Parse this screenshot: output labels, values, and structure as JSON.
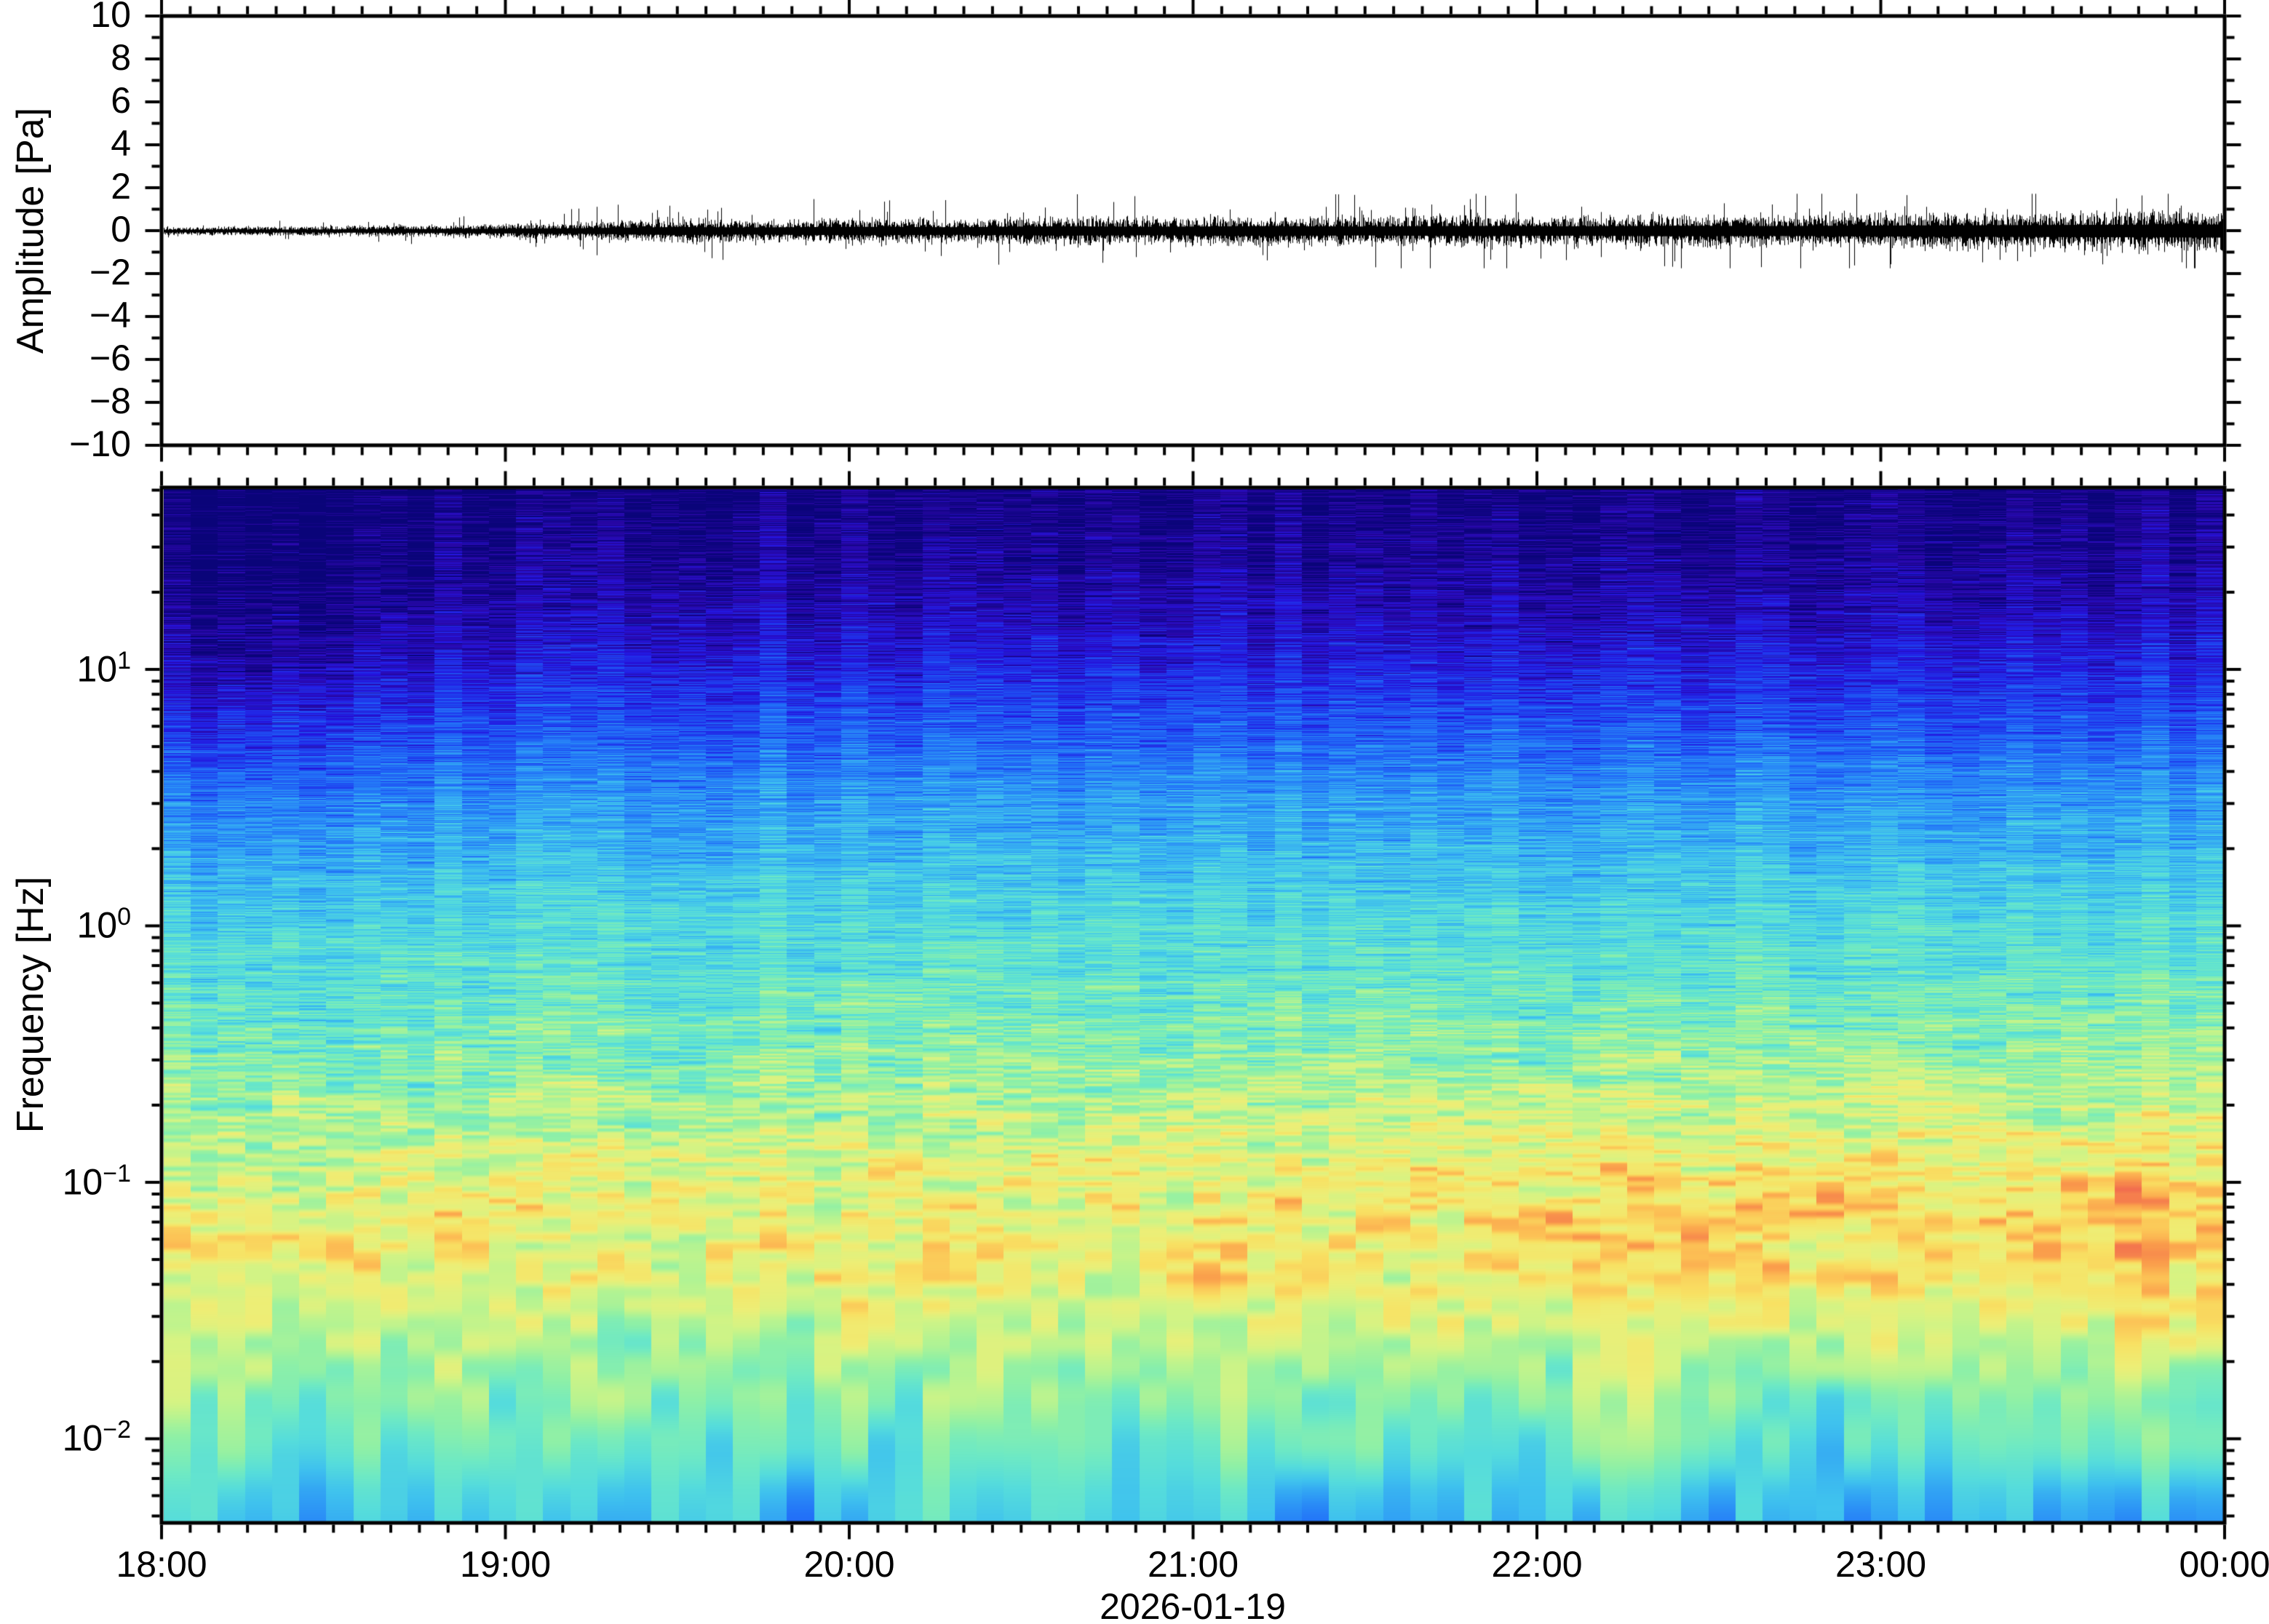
{
  "figure": {
    "date_label": "2026-01-19",
    "background": "#ffffff",
    "frame_color": "#000000"
  },
  "chart_data": [
    {
      "id": "waveform",
      "type": "line",
      "title": "",
      "xlabel": "",
      "ylabel": "Amplitude [Pa]",
      "ylim": [
        -10,
        10
      ],
      "ytick_interval": 2,
      "ytick_minor_interval": 1,
      "ytick_labels": [
        "10",
        "8",
        "6",
        "4",
        "2",
        "0",
        "−2",
        "−4",
        "−6",
        "−8",
        "−10"
      ],
      "ytick_values": [
        10,
        8,
        6,
        4,
        2,
        0,
        -2,
        -4,
        -6,
        -8,
        -10
      ],
      "x_start": "18:00",
      "x_end": "00:00",
      "x_span_hours": 6,
      "xtick_major_minutes": 60,
      "xtick_minor_minutes": 5,
      "line_color": "#000000",
      "grid": false,
      "description": "Broadband infrasound pressure time series; zero-mean noise whose amplitude grows from about ±0.1 Pa at 18:00 to about ±0.6 Pa at 00:00, with intermittent spikes reaching about ±1.6 Pa after 20:00.",
      "envelope_pa_vs_hours": [
        [
          0.0,
          0.12
        ],
        [
          0.5,
          0.15
        ],
        [
          0.9,
          0.2
        ],
        [
          1.2,
          0.26
        ],
        [
          1.5,
          0.38
        ],
        [
          1.7,
          0.33
        ],
        [
          2.0,
          0.4
        ],
        [
          2.3,
          0.36
        ],
        [
          2.6,
          0.44
        ],
        [
          2.9,
          0.4
        ],
        [
          3.2,
          0.46
        ],
        [
          3.5,
          0.42
        ],
        [
          3.8,
          0.48
        ],
        [
          4.1,
          0.44
        ],
        [
          4.4,
          0.5
        ],
        [
          4.7,
          0.47
        ],
        [
          5.0,
          0.52
        ],
        [
          5.3,
          0.55
        ],
        [
          5.6,
          0.58
        ],
        [
          6.0,
          0.62
        ]
      ],
      "spike_max_pa": 1.75,
      "seed": 20260119
    },
    {
      "id": "spectrogram",
      "type": "heatmap",
      "title": "",
      "xlabel": "2026-01-19",
      "ylabel": "Frequency [Hz]",
      "yscale": "log",
      "ylim_hz": [
        0.0047,
        51.2
      ],
      "ytick_decade_exponents": [
        "1",
        "0",
        "−1",
        "−2"
      ],
      "ytick_decade_values": [
        10,
        1,
        0.1,
        0.01
      ],
      "ytick_base": "10",
      "xticks": [
        "18:00",
        "19:00",
        "20:00",
        "21:00",
        "22:00",
        "23:00",
        "00:00"
      ],
      "xtick_minor_minutes": 5,
      "time_bins": 76,
      "freq_bin_hz": 0.0047,
      "grid": false,
      "legend": "none (no colorbar shown)",
      "colormap_stops": [
        [
          0.0,
          "#0A0479"
        ],
        [
          0.05,
          "#2A07A8"
        ],
        [
          0.1,
          "#2415E0"
        ],
        [
          0.16,
          "#1E46F0"
        ],
        [
          0.22,
          "#2272F8"
        ],
        [
          0.28,
          "#2F9DF5"
        ],
        [
          0.34,
          "#3FC2EE"
        ],
        [
          0.4,
          "#55DCDC"
        ],
        [
          0.46,
          "#6EE9C4"
        ],
        [
          0.52,
          "#8FF0A6"
        ],
        [
          0.58,
          "#B4F392"
        ],
        [
          0.64,
          "#D6F383"
        ],
        [
          0.7,
          "#EDEE76"
        ],
        [
          0.76,
          "#F8E163"
        ],
        [
          0.82,
          "#FCC155"
        ],
        [
          0.88,
          "#FA9C4B"
        ],
        [
          0.94,
          "#F26F4E"
        ],
        [
          1.0,
          "#E44F4C"
        ]
      ],
      "power_profile_log10hz_vs_level": [
        [
          1.71,
          0.015
        ],
        [
          1.45,
          0.03
        ],
        [
          1.2,
          0.07
        ],
        [
          1.0,
          0.12
        ],
        [
          0.8,
          0.18
        ],
        [
          0.5,
          0.28
        ],
        [
          0.2,
          0.35
        ],
        [
          0.0,
          0.4
        ],
        [
          -0.3,
          0.45
        ],
        [
          -0.6,
          0.52
        ],
        [
          -0.9,
          0.6
        ],
        [
          -1.1,
          0.66
        ],
        [
          -1.3,
          0.67
        ],
        [
          -1.5,
          0.63
        ],
        [
          -1.7,
          0.56
        ],
        [
          -1.9,
          0.49
        ],
        [
          -2.05,
          0.44
        ],
        [
          -2.2,
          0.38
        ],
        [
          -2.33,
          0.35
        ]
      ],
      "noise_amp_log10hz_vs_amp": [
        [
          1.71,
          0.09
        ],
        [
          1.4,
          0.11
        ],
        [
          0.6,
          0.13
        ],
        [
          0.0,
          0.13
        ],
        [
          -0.25,
          0.16
        ],
        [
          -0.6,
          0.19
        ],
        [
          -1.1,
          0.21
        ],
        [
          -1.6,
          0.19
        ],
        [
          -1.95,
          0.15
        ],
        [
          -2.33,
          0.15
        ]
      ],
      "time_trend": {
        "description": "Microbarom band (~0.03-0.3 Hz) power increases steadily through the evening; mid/high frequencies slightly quieter and patchier before ~19:20.",
        "hot_band_center_log10hz": -1.05,
        "hot_band_sigma_log10hz": 0.6,
        "hot_band_gain": 0.13,
        "early_cool_center_log10hz": 0.9,
        "early_cool_sigma_log10hz": 0.8,
        "early_cool_gain": -0.07,
        "early_cool_end_hours": 1.3
      },
      "seed": 20260119
    }
  ]
}
